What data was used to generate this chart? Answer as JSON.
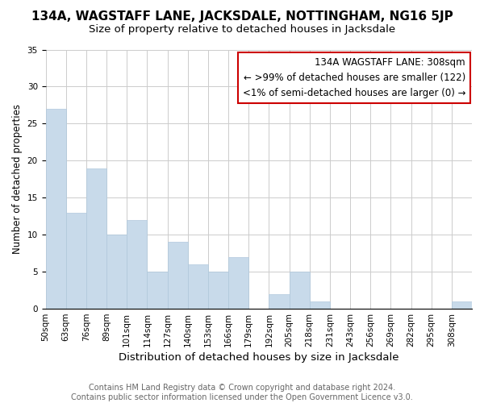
{
  "title": "134A, WAGSTAFF LANE, JACKSDALE, NOTTINGHAM, NG16 5JP",
  "subtitle": "Size of property relative to detached houses in Jacksdale",
  "xlabel": "Distribution of detached houses by size in Jacksdale",
  "ylabel": "Number of detached properties",
  "bar_values": [
    27,
    13,
    19,
    10,
    12,
    5,
    9,
    6,
    5,
    7,
    0,
    2,
    5,
    1,
    0,
    0,
    0,
    0,
    0,
    0,
    1
  ],
  "tick_labels": [
    "50sqm",
    "63sqm",
    "76sqm",
    "89sqm",
    "101sqm",
    "114sqm",
    "127sqm",
    "140sqm",
    "153sqm",
    "166sqm",
    "179sqm",
    "192sqm",
    "205sqm",
    "218sqm",
    "231sqm",
    "243sqm",
    "256sqm",
    "269sqm",
    "282sqm",
    "295sqm",
    "308sqm"
  ],
  "bar_color": "#c8daea",
  "bar_edge_color": "#b0c8dc",
  "ylim": [
    0,
    35
  ],
  "yticks": [
    0,
    5,
    10,
    15,
    20,
    25,
    30,
    35
  ],
  "annotation_box_title": "134A WAGSTAFF LANE: 308sqm",
  "annotation_line1": "← >99% of detached houses are smaller (122)",
  "annotation_line2": "<1% of semi-detached houses are larger (0) →",
  "annotation_box_color": "#ffffff",
  "annotation_box_edge_color": "#cc0000",
  "footer_line1": "Contains HM Land Registry data © Crown copyright and database right 2024.",
  "footer_line2": "Contains public sector information licensed under the Open Government Licence v3.0.",
  "grid_color": "#cccccc",
  "background_color": "#ffffff",
  "title_fontsize": 11,
  "subtitle_fontsize": 9.5,
  "xlabel_fontsize": 9.5,
  "ylabel_fontsize": 8.5,
  "tick_label_fontsize": 7.5,
  "footer_fontsize": 7,
  "annotation_fontsize": 8.5
}
